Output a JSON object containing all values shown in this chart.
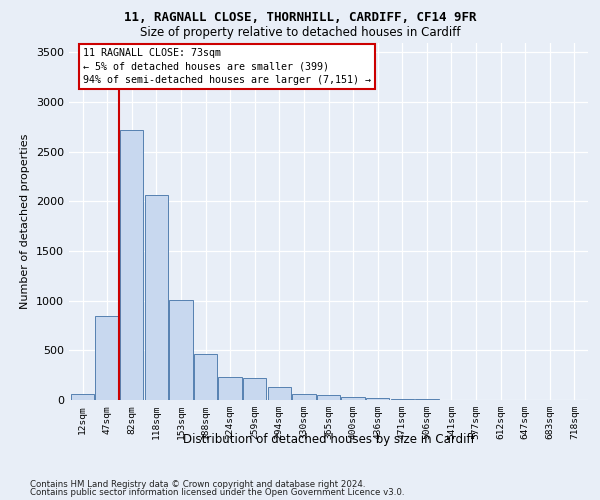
{
  "title1": "11, RAGNALL CLOSE, THORNHILL, CARDIFF, CF14 9FR",
  "title2": "Size of property relative to detached houses in Cardiff",
  "xlabel": "Distribution of detached houses by size in Cardiff",
  "ylabel": "Number of detached properties",
  "bar_labels": [
    "12sqm",
    "47sqm",
    "82sqm",
    "118sqm",
    "153sqm",
    "188sqm",
    "224sqm",
    "259sqm",
    "294sqm",
    "330sqm",
    "365sqm",
    "400sqm",
    "436sqm",
    "471sqm",
    "506sqm",
    "541sqm",
    "577sqm",
    "612sqm",
    "647sqm",
    "683sqm",
    "718sqm"
  ],
  "bar_values": [
    60,
    850,
    2720,
    2060,
    1005,
    460,
    230,
    225,
    135,
    65,
    50,
    35,
    20,
    8,
    8,
    4,
    4,
    4,
    2,
    2,
    2
  ],
  "bar_color": "#c8d8ef",
  "bar_edge_color": "#5580b0",
  "ylim": [
    0,
    3600
  ],
  "yticks": [
    0,
    500,
    1000,
    1500,
    2000,
    2500,
    3000,
    3500
  ],
  "property_line_x": 1.5,
  "annotation_line1": "11 RAGNALL CLOSE: 73sqm",
  "annotation_line2": "← 5% of detached houses are smaller (399)",
  "annotation_line3": "94% of semi-detached houses are larger (7,151) →",
  "annotation_box_color": "#ffffff",
  "annotation_box_edge": "#cc0000",
  "line_color": "#cc0000",
  "bg_color": "#e8eef7",
  "footer1": "Contains HM Land Registry data © Crown copyright and database right 2024.",
  "footer2": "Contains public sector information licensed under the Open Government Licence v3.0."
}
